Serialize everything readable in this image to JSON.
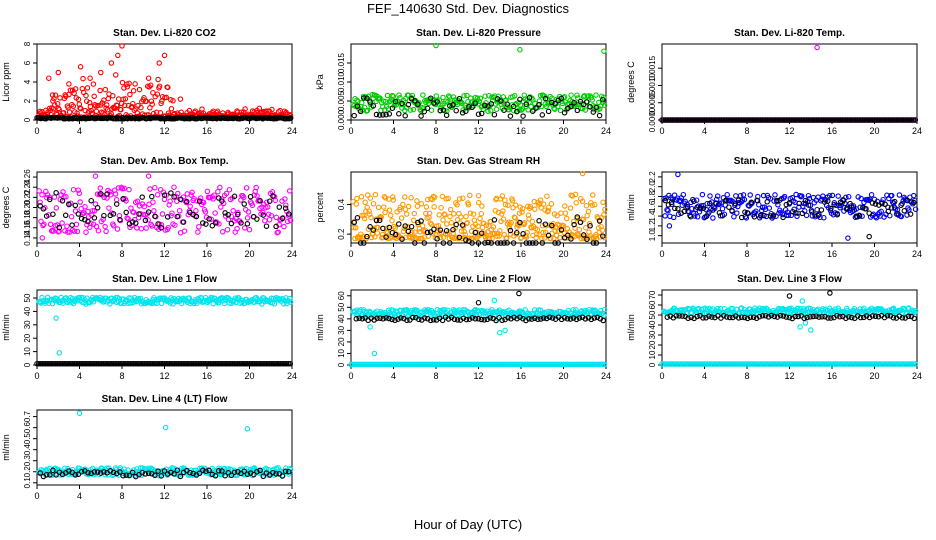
{
  "title": "FEF_140630  Std. Dev. Diagnostics",
  "xlabel": "Hour of Day (UTC)",
  "chart_data": [
    {
      "type": "scatter",
      "title": "Stan. Dev. Li-820 CO2",
      "ylabel": "Licor ppm",
      "xlim": [
        0,
        24
      ],
      "ylim": [
        0,
        8
      ],
      "xticks": [
        "0",
        "4",
        "8",
        "12",
        "16",
        "20",
        "24"
      ],
      "yticks": [
        "0",
        "2",
        "4",
        "6",
        "8"
      ],
      "series": [
        {
          "color": "#ff0000",
          "pattern": "co2",
          "x": [
            1.5,
            2.0,
            3.0,
            4.1,
            5.0,
            6.0,
            7.0,
            7.6,
            8.0,
            8.5,
            10.5,
            11.5,
            12.0,
            13.5
          ],
          "y": [
            2.0,
            5.0,
            3.8,
            5.6,
            4.4,
            5.0,
            6.0,
            6.8,
            7.8,
            3.5,
            4.4,
            6.0,
            6.8,
            2.2
          ]
        },
        {
          "color": "#000000",
          "pattern": "base",
          "base": 0.2,
          "spread": 0.15,
          "x": [],
          "y": []
        }
      ]
    },
    {
      "type": "scatter",
      "title": "Stan. Dev. Li-820 Pressure",
      "ylabel": "kPa",
      "xlim": [
        0,
        24
      ],
      "ylim": [
        0,
        0.02
      ],
      "xticks": [
        "0",
        "4",
        "8",
        "12",
        "16",
        "20",
        "24"
      ],
      "yticks": [
        "0.000",
        "0.005",
        "0.010",
        "0.015"
      ],
      "series": [
        {
          "color": "#00cc00",
          "pattern": "band",
          "base": 0.0045,
          "spread": 0.0022,
          "x": [
            8.0,
            15.9,
            23.8
          ],
          "y": [
            0.0196,
            0.0185,
            0.0181
          ]
        },
        {
          "color": "#000000",
          "pattern": "sparse",
          "base": 0.0035,
          "spread": 0.0025,
          "x": [],
          "y": []
        }
      ]
    },
    {
      "type": "scatter",
      "title": "Stan. Dev. Li-820 Temp.",
      "ylabel": "degrees C",
      "xlim": [
        0,
        24
      ],
      "ylim": [
        0,
        0.0022
      ],
      "xticks": [
        "0",
        "4",
        "8",
        "12",
        "16",
        "20",
        "24"
      ],
      "yticks": [
        "0.0000",
        "0.0005",
        "0.0010",
        "0.0015"
      ],
      "series": [
        {
          "color": "#ff00ff",
          "pattern": "flat",
          "base": 0,
          "x": [
            14.6
          ],
          "y": [
            0.0021
          ]
        },
        {
          "color": "#000000",
          "pattern": "flat",
          "base": 0,
          "x": [],
          "y": []
        }
      ]
    },
    {
      "type": "scatter",
      "title": "Stan. Dev. Amb. Box Temp.",
      "ylabel": "degrees C",
      "xlim": [
        0,
        24
      ],
      "ylim": [
        0.13,
        0.27
      ],
      "xticks": [
        "0",
        "4",
        "8",
        "12",
        "16",
        "20",
        "24"
      ],
      "yticks": [
        "0.14",
        "0.16",
        "0.18",
        "0.20",
        "0.22",
        "0.24",
        "0.26"
      ],
      "series": [
        {
          "color": "#ff00ff",
          "pattern": "band",
          "base": 0.195,
          "spread": 0.045,
          "x": [
            0.5,
            5.5,
            10.5
          ],
          "y": [
            0.14,
            0.262,
            0.262
          ]
        },
        {
          "color": "#000000",
          "pattern": "sparse",
          "base": 0.195,
          "spread": 0.035,
          "x": [],
          "y": []
        }
      ]
    },
    {
      "type": "scatter",
      "title": "Stan. Dev. Gas Stream RH",
      "ylabel": "percent",
      "xlim": [
        0,
        24
      ],
      "ylim": [
        0.14,
        0.62
      ],
      "xticks": [
        "0",
        "4",
        "8",
        "12",
        "16",
        "20",
        "24"
      ],
      "yticks": [
        "0.2",
        "0.4"
      ],
      "series": [
        {
          "color": "#ff9900",
          "pattern": "rh",
          "base": 0.22,
          "spread": 0.2,
          "x": [
            12.0,
            21.8
          ],
          "y": [
            0.46,
            0.61
          ]
        },
        {
          "color": "#000000",
          "pattern": "sparse",
          "base": 0.2,
          "spread": 0.12,
          "x": [],
          "y": []
        }
      ]
    },
    {
      "type": "scatter",
      "title": "Stan. Dev. Sample Flow",
      "ylabel": "ml/min",
      "xlim": [
        0,
        24
      ],
      "ylim": [
        0.85,
        2.3
      ],
      "xticks": [
        "0",
        "4",
        "8",
        "12",
        "16",
        "20",
        "24"
      ],
      "yticks": [
        "1.0",
        "1.2",
        "1.4",
        "1.6",
        "1.8",
        "2.0",
        "2.2"
      ],
      "series": [
        {
          "color": "#0000ee",
          "pattern": "band",
          "base": 1.6,
          "spread": 0.24,
          "x": [
            1.5,
            0.7,
            17.5
          ],
          "y": [
            2.25,
            1.2,
            0.95
          ]
        },
        {
          "color": "#000000",
          "pattern": "sparse",
          "base": 1.55,
          "spread": 0.18,
          "x": [
            19.5
          ],
          "y": [
            0.98
          ]
        }
      ]
    },
    {
      "type": "scatter",
      "title": "Stan. Dev. Line 1 Flow",
      "ylabel": "ml/min",
      "xlim": [
        0,
        24
      ],
      "ylim": [
        0,
        56
      ],
      "xticks": [
        "0",
        "4",
        "8",
        "12",
        "16",
        "20",
        "24"
      ],
      "yticks": [
        "0",
        "10",
        "20",
        "30",
        "40",
        "50"
      ],
      "series": [
        {
          "color": "#00e5ee",
          "pattern": "band",
          "base": 48,
          "spread": 2.5,
          "x": [
            1.8,
            2.1
          ],
          "y": [
            35,
            9
          ]
        },
        {
          "color": "#000000",
          "pattern": "flat",
          "base": 1,
          "x": [],
          "y": []
        }
      ]
    },
    {
      "type": "scatter",
      "title": "Stan. Dev. Line 2 Flow",
      "ylabel": "ml/min",
      "xlim": [
        0,
        24
      ],
      "ylim": [
        0,
        65
      ],
      "xticks": [
        "0",
        "4",
        "8",
        "12",
        "16",
        "20",
        "24"
      ],
      "yticks": [
        "0",
        "10",
        "20",
        "30",
        "40",
        "50",
        "60"
      ],
      "series": [
        {
          "color": "#00e5ee",
          "pattern": "band",
          "base": 45,
          "spread": 3,
          "x": [
            1.8,
            2.2,
            13.5,
            14.0,
            14.5,
            13.8
          ],
          "y": [
            33,
            10,
            56,
            28,
            30,
            40
          ]
        },
        {
          "color": "#000000",
          "pattern": "line",
          "base": 40,
          "x": [
            12.0,
            15.8
          ],
          "y": [
            54,
            62
          ]
        },
        {
          "color": "#00e5ee",
          "pattern": "flat",
          "base": 0.5,
          "x": [],
          "y": []
        }
      ]
    },
    {
      "type": "scatter",
      "title": "Stan. Dev. Line 3 Flow",
      "ylabel": "ml/min",
      "xlim": [
        0,
        24
      ],
      "ylim": [
        0,
        75
      ],
      "xticks": [
        "0",
        "4",
        "8",
        "12",
        "16",
        "20",
        "24"
      ],
      "yticks": [
        "0",
        "10",
        "20",
        "30",
        "40",
        "50",
        "60",
        "70"
      ],
      "series": [
        {
          "color": "#00e5ee",
          "pattern": "band",
          "base": 54,
          "spread": 3,
          "x": [
            13.0,
            13.5,
            14.0,
            13.2
          ],
          "y": [
            38,
            42,
            35,
            64
          ]
        },
        {
          "color": "#000000",
          "pattern": "line",
          "base": 48,
          "x": [
            12.0,
            15.8
          ],
          "y": [
            69,
            72
          ]
        },
        {
          "color": "#00e5ee",
          "pattern": "flat",
          "base": 1,
          "x": [],
          "y": []
        }
      ]
    },
    {
      "type": "scatter",
      "title": "Stan. Dev. Line 4 (LT) Flow",
      "ylabel": "ml/min",
      "xlim": [
        0,
        24
      ],
      "ylim": [
        0.08,
        0.76
      ],
      "xticks": [
        "0",
        "4",
        "8",
        "12",
        "16",
        "20",
        "24"
      ],
      "yticks": [
        "0.1",
        "0.2",
        "0.3",
        "0.4",
        "0.5",
        "0.6",
        "0.7"
      ],
      "series": [
        {
          "color": "#00e5ee",
          "pattern": "band",
          "base": 0.2,
          "spread": 0.035,
          "x": [
            4.0,
            12.1,
            19.8
          ],
          "y": [
            0.73,
            0.6,
            0.59
          ]
        },
        {
          "color": "#000000",
          "pattern": "sparse",
          "base": 0.185,
          "spread": 0.03,
          "x": [],
          "y": []
        }
      ]
    }
  ]
}
